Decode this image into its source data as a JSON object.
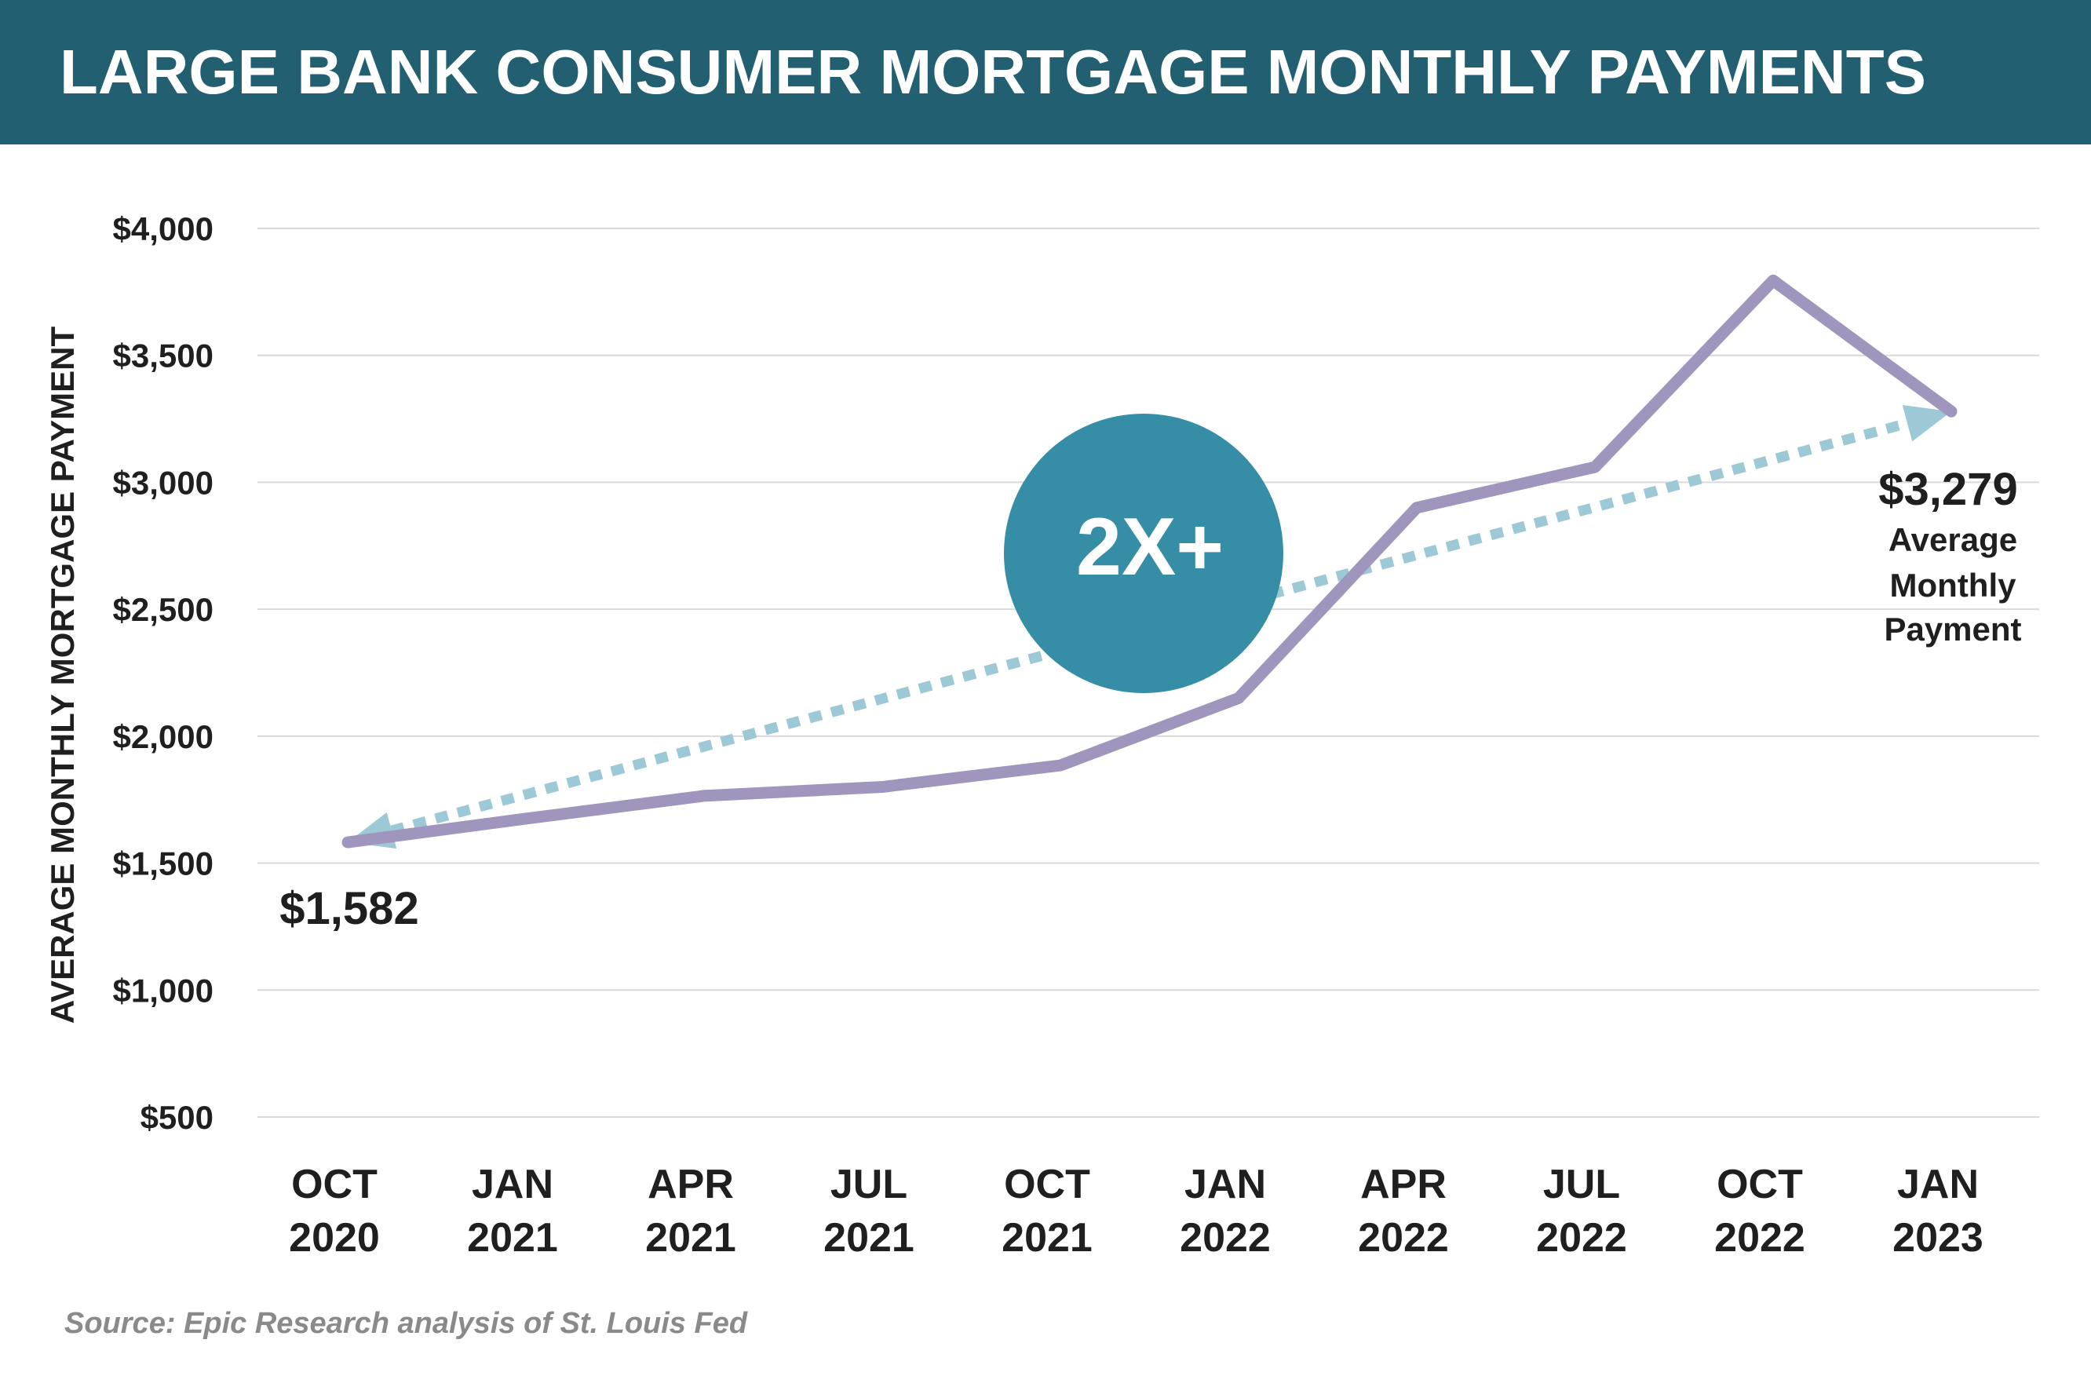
{
  "header": {
    "title": "LARGE BANK CONSUMER MORTGAGE MONTHLY PAYMENTS"
  },
  "footer": {
    "source": "Source: Epic Research analysis of St. Louis Fed"
  },
  "colors": {
    "banner": "#225f70",
    "series_line": "#a095bd",
    "trend_arrow": "#9dc8d6",
    "badge": "#358ea6",
    "grid": "#d9d9d9",
    "text": "#1f1f1f",
    "source_text": "#8a8a8a"
  },
  "chart_data": {
    "type": "line",
    "ylabel": "AVERAGE MONTHLY MORTGAGE PAYMENT",
    "ylim": [
      500,
      4000
    ],
    "yticks": [
      500,
      1000,
      1500,
      2000,
      2500,
      3000,
      3500,
      4000
    ],
    "ytick_labels": [
      "$500",
      "$1,000",
      "$1,500",
      "$2,000",
      "$2,500",
      "$3,000",
      "$3,500",
      "$4,000"
    ],
    "grid": true,
    "categories": [
      [
        "OCT",
        "2020"
      ],
      [
        "JAN",
        "2021"
      ],
      [
        "APR",
        "2021"
      ],
      [
        "JUL",
        "2021"
      ],
      [
        "OCT",
        "2021"
      ],
      [
        "JAN",
        "2022"
      ],
      [
        "APR",
        "2022"
      ],
      [
        "JUL",
        "2022"
      ],
      [
        "OCT",
        "2022"
      ],
      [
        "JAN",
        "2023"
      ]
    ],
    "series": [
      {
        "values": [
          1582,
          1675,
          1765,
          1800,
          1885,
          2150,
          2900,
          3060,
          3795,
          3279
        ]
      }
    ],
    "trend": {
      "from": 1582,
      "to": 3279,
      "style": "dotted double-arrow"
    },
    "annotations": {
      "start_value": "$1,582",
      "end_value": "$3,279",
      "end_caption": [
        "Average",
        "Monthly",
        "Payment"
      ],
      "badge": "2X+"
    }
  }
}
